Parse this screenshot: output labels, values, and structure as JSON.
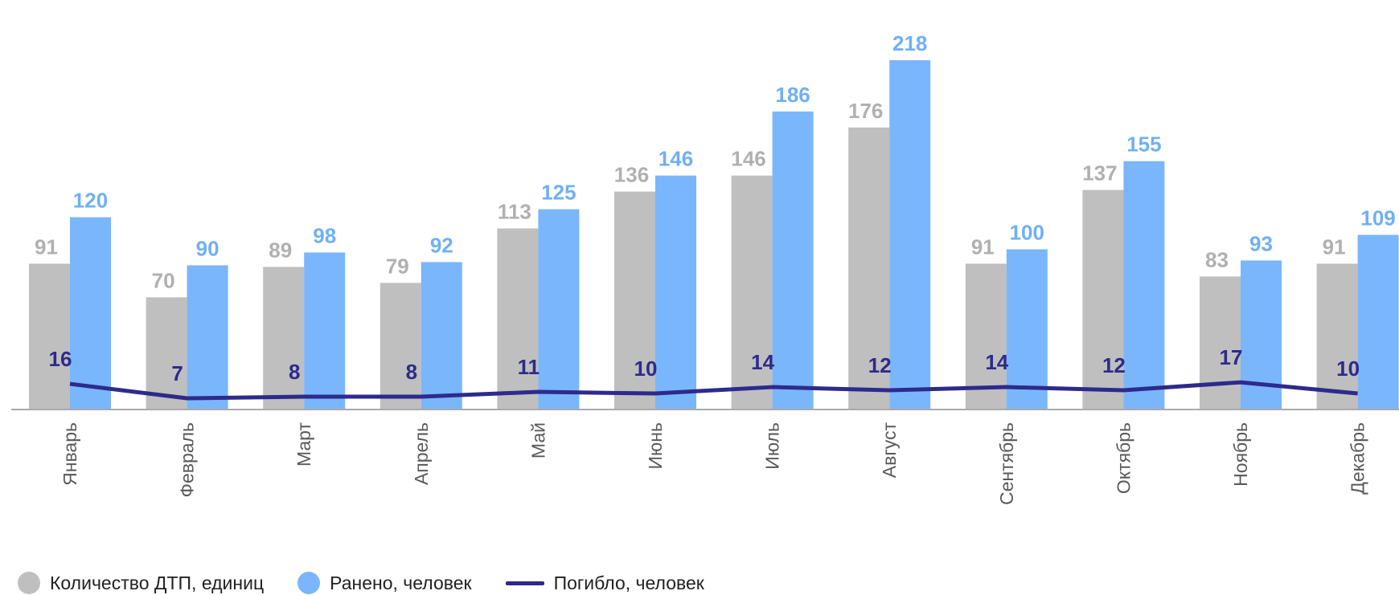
{
  "chart_data": {
    "type": "bar",
    "categories": [
      "Январь",
      "Февраль",
      "Март",
      "Апрель",
      "Май",
      "Июнь",
      "Июль",
      "Август",
      "Сентябрь",
      "Октябрь",
      "Ноябрь",
      "Декабрь"
    ],
    "series": [
      {
        "name": "Количество ДТП, единиц",
        "type": "bar",
        "color": "#bfbfbf",
        "label_color": "#b0b0b0",
        "values": [
          91,
          70,
          89,
          79,
          113,
          136,
          146,
          176,
          91,
          137,
          83,
          91
        ]
      },
      {
        "name": "Ранено, человек",
        "type": "bar",
        "color": "#7ab6fb",
        "label_color": "#6fb0f7",
        "values": [
          120,
          90,
          98,
          92,
          125,
          146,
          186,
          218,
          100,
          155,
          93,
          109
        ]
      },
      {
        "name": "Погибло, человек",
        "type": "line",
        "color": "#2e2a8c",
        "label_color": "#2e2a8c",
        "values": [
          16,
          7,
          8,
          8,
          11,
          10,
          14,
          12,
          14,
          12,
          17,
          10
        ]
      }
    ],
    "title": "",
    "xlabel": "",
    "ylabel": "",
    "ylim": [
      0,
      228
    ],
    "grid": false,
    "legend_position": "bottom-left",
    "axis_color": "#aaaaaa"
  }
}
